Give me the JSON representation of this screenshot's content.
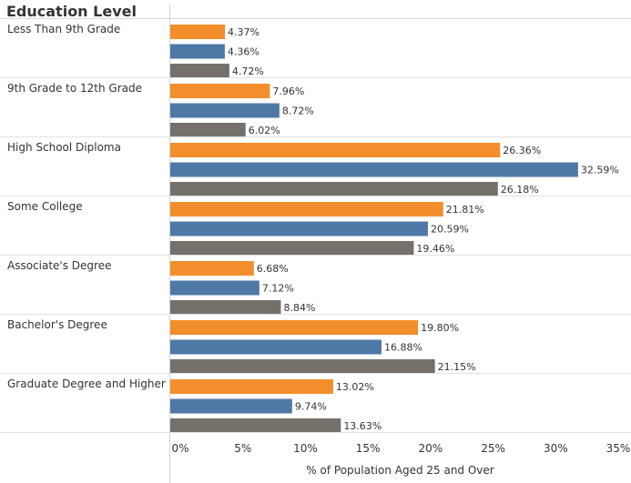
{
  "header": {
    "row_header": "Education Level"
  },
  "chart_data": {
    "type": "bar",
    "orientation": "horizontal",
    "categories": [
      "Less Than 9th Grade",
      "9th Grade to 12th Grade",
      "High School Diploma",
      "Some College",
      "Associate's Degree",
      "Bachelor's Degree",
      "Graduate Degree and Higher"
    ],
    "series": [
      {
        "color": "#f28e2b",
        "values": [
          4.37,
          7.96,
          26.36,
          21.81,
          6.68,
          19.8,
          13.02
        ],
        "labels": [
          "4.37%",
          "7.96%",
          "26.36%",
          "21.81%",
          "6.68%",
          "19.80%",
          "13.02%"
        ]
      },
      {
        "color": "#4e79a7",
        "values": [
          4.36,
          8.72,
          32.59,
          20.59,
          7.12,
          16.88,
          9.74
        ],
        "labels": [
          "4.36%",
          "8.72%",
          "32.59%",
          "20.59%",
          "7.12%",
          "16.88%",
          "9.74%"
        ]
      },
      {
        "color": "#76706b",
        "values": [
          4.72,
          6.02,
          26.18,
          19.46,
          8.84,
          21.15,
          13.63
        ],
        "labels": [
          "4.72%",
          "6.02%",
          "26.18%",
          "19.46%",
          "8.84%",
          "21.15%",
          "13.63%"
        ]
      }
    ],
    "xlabel": "% of Population Aged 25 and Over",
    "xlim": [
      0,
      35
    ],
    "xticks": [
      0,
      5,
      10,
      15,
      20,
      25,
      30,
      35
    ],
    "xtick_labels": [
      "0%",
      "5%",
      "10%",
      "15%",
      "20%",
      "25%",
      "30%",
      "35%"
    ],
    "grid": false,
    "legend": "none"
  }
}
